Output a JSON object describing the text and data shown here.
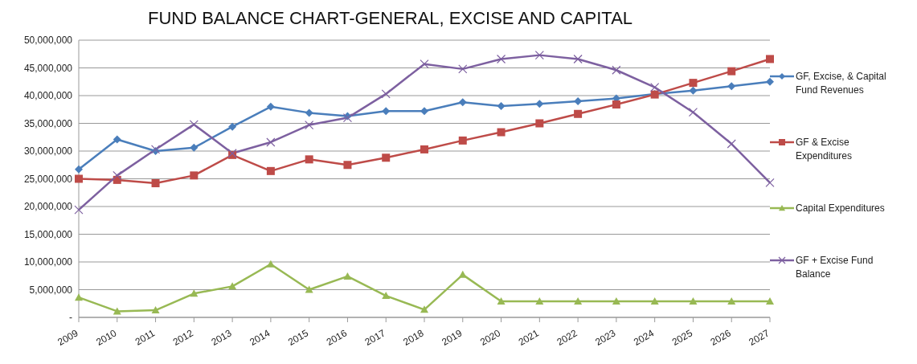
{
  "chart_data": {
    "type": "line",
    "title": "FUND BALANCE CHART-GENERAL, EXCISE AND CAPITAL",
    "categories": [
      "2009",
      "2010",
      "2011",
      "2012",
      "2013",
      "2014",
      "2015",
      "2016",
      "2017",
      "2018",
      "2019",
      "2020",
      "2021",
      "2022",
      "2023",
      "2024",
      "2025",
      "2026",
      "2027"
    ],
    "series": [
      {
        "name": "GF, Excise, & Capital Fund Revenues",
        "color": "#4a7ebb",
        "marker": "diamond",
        "values": [
          26700000,
          32100000,
          30000000,
          30600000,
          34400000,
          38000000,
          36900000,
          36300000,
          37200000,
          37200000,
          38800000,
          38100000,
          38500000,
          39000000,
          39500000,
          40300000,
          40900000,
          41700000,
          42500000
        ]
      },
      {
        "name": "GF & Excise Expenditures",
        "color": "#be4b48",
        "marker": "square",
        "values": [
          25000000,
          24800000,
          24200000,
          25600000,
          29300000,
          26400000,
          28500000,
          27500000,
          28800000,
          30300000,
          31900000,
          33400000,
          35000000,
          36700000,
          38400000,
          40200000,
          42300000,
          44400000,
          46600000
        ]
      },
      {
        "name": "Capital Expenditures",
        "color": "#98b954",
        "marker": "triangle",
        "values": [
          3600000,
          1100000,
          1300000,
          4300000,
          5600000,
          9600000,
          5000000,
          7400000,
          3900000,
          1400000,
          7700000,
          2900000,
          2900000,
          2900000,
          2900000,
          2900000,
          2900000,
          2900000,
          2900000
        ]
      },
      {
        "name": "GF + Excise Fund Balance",
        "color": "#7d60a0",
        "marker": "cross",
        "values": [
          19400000,
          25600000,
          30300000,
          34800000,
          29600000,
          31600000,
          34700000,
          36000000,
          40300000,
          45700000,
          44800000,
          46600000,
          47300000,
          46600000,
          44600000,
          41500000,
          37000000,
          31300000,
          24300000
        ]
      }
    ],
    "ylim": [
      0,
      50000000
    ],
    "yticks": [
      {
        "value": 0,
        "label": "-"
      },
      {
        "value": 5000000,
        "label": "5,000,000"
      },
      {
        "value": 10000000,
        "label": "10,000,000"
      },
      {
        "value": 15000000,
        "label": "15,000,000"
      },
      {
        "value": 20000000,
        "label": "20,000,000"
      },
      {
        "value": 25000000,
        "label": "25,000,000"
      },
      {
        "value": 30000000,
        "label": "30,000,000"
      },
      {
        "value": 35000000,
        "label": "35,000,000"
      },
      {
        "value": 40000000,
        "label": "40,000,000"
      },
      {
        "value": 45000000,
        "label": "45,000,000"
      },
      {
        "value": 50000000,
        "label": "50,000,000"
      }
    ],
    "grid": "y",
    "legend": "right",
    "line_style": "solid"
  }
}
